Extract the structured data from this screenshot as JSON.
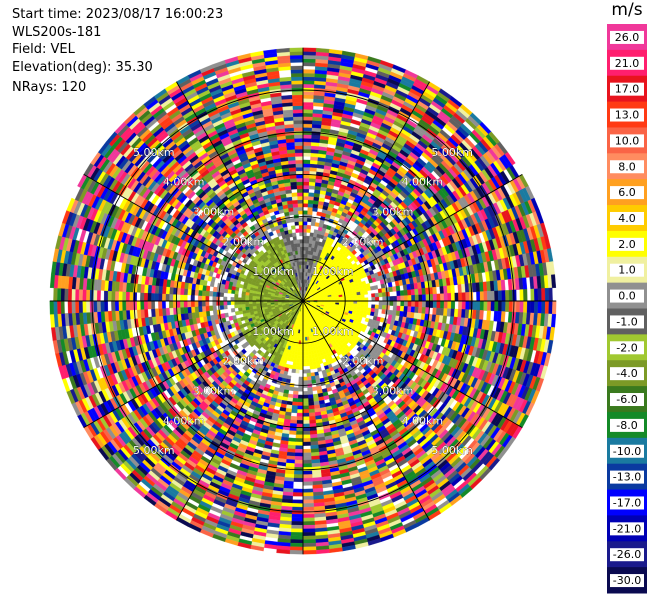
{
  "info": {
    "start_time": "Start time: 2023/08/17 16:00:23",
    "instrument": "WLS200s-181",
    "field": "Field: VEL",
    "elevation": "Elevation(deg): 35.30",
    "nrays": "NRays: 120"
  },
  "colorbar": {
    "unit": "m/s",
    "ticks": [
      "26.0",
      "21.0",
      "17.0",
      "13.0",
      "10.0",
      "8.0",
      "6.0",
      "4.0",
      "2.0",
      "1.0",
      "0.0",
      "-1.0",
      "-2.0",
      "-4.0",
      "-6.0",
      "-8.0",
      "-10.0",
      "-13.0",
      "-17.0",
      "-21.0",
      "-26.0",
      "-30.0"
    ],
    "colors": [
      "#f0389a",
      "#ff1f6e",
      "#e8141e",
      "#ff3a14",
      "#fa6446",
      "#ff8c60",
      "#ffa020",
      "#ffcc00",
      "#ffff00",
      "#f0f0a0",
      "#909090",
      "#606060",
      "#a0c830",
      "#7c9a26",
      "#3a7a1e",
      "#148a28",
      "#1a7aa0",
      "#0a3aa0",
      "#0000ff",
      "#0000b4",
      "#1a1a8c",
      "#0a0a50"
    ]
  },
  "chart_data": {
    "type": "heatmap",
    "subtype": "polar-ppi",
    "field": "VEL",
    "units": "m/s",
    "n_rays": 120,
    "max_range_km": 6.0,
    "ring_labels": [
      "1.00km",
      "2.00km",
      "3.00km",
      "4.00km",
      "5.00km"
    ],
    "ring_ranges_km": [
      1.0,
      2.0,
      3.0,
      4.0,
      5.0
    ],
    "spoke_angles_deg": [
      0,
      30,
      60,
      90,
      120,
      150,
      180,
      210,
      240,
      270,
      300,
      330
    ],
    "color_scale_min": -30.0,
    "color_scale_max": 26.0,
    "regions": [
      {
        "description": "near-range approaching flow",
        "range_km": [
          0,
          1.6
        ],
        "azimuth_deg": [
          200,
          340
        ],
        "value_range": [
          -4.0,
          -1.0
        ]
      },
      {
        "description": "near-range receding flow",
        "range_km": [
          0,
          1.6
        ],
        "azimuth_deg": [
          20,
          200
        ],
        "value_range": [
          2.0,
          4.0
        ]
      },
      {
        "description": "near-zero sector",
        "range_km": [
          0,
          1.6
        ],
        "azimuth_deg": [
          340,
          20
        ],
        "value_range": [
          -1.0,
          1.0
        ]
      },
      {
        "description": "far-range noise",
        "range_km": [
          2.2,
          6.0
        ],
        "azimuth_deg": [
          0,
          360
        ],
        "value_range": [
          -30.0,
          26.0
        ]
      }
    ]
  }
}
